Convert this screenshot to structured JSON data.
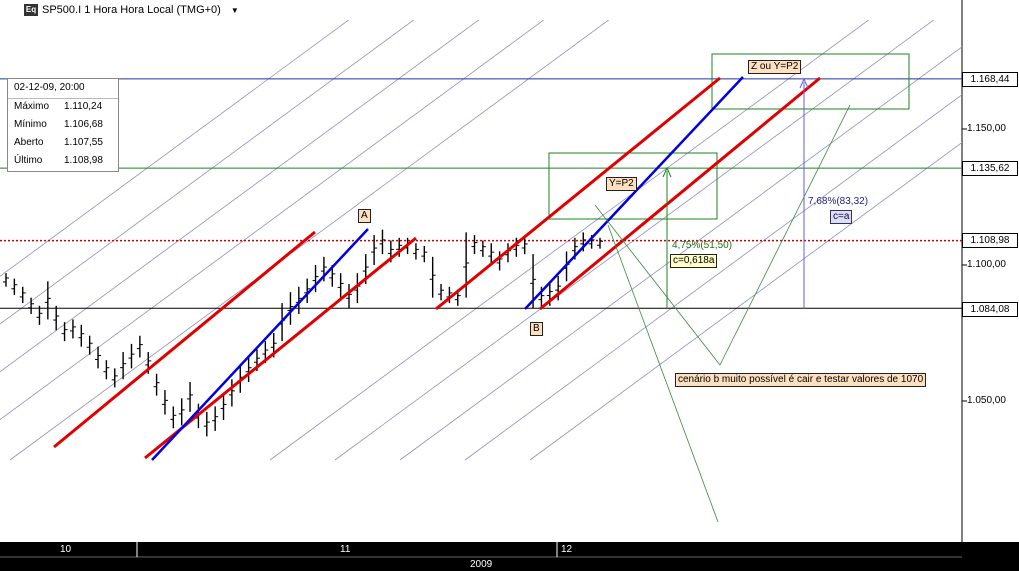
{
  "header": {
    "icon_label": "Eq",
    "title": "SP500.I 1 Hora Hora Local (TMG+0)"
  },
  "info_panel": {
    "date": "02-12-09, 20:00",
    "rows": [
      {
        "label": "Máximo",
        "value": "1.110,24"
      },
      {
        "label": "Mínimo",
        "value": "1.106,68"
      },
      {
        "label": "Aberto",
        "value": "1.107,55"
      },
      {
        "label": "Último",
        "value": "1.108,98"
      }
    ]
  },
  "y_axis_ticks": [
    "1.150,00",
    "1.100,00",
    "1.050,00"
  ],
  "price_markers": [
    {
      "label": "1.168,44",
      "color": "#cc0000"
    },
    {
      "label": "1.135,62",
      "color": "#cc0000"
    },
    {
      "label": "1.108,98",
      "color": "#000000"
    },
    {
      "label": "1.084,08",
      "color": "#cc0000"
    }
  ],
  "x_axis": {
    "day_labels": [
      "10",
      "11",
      "12"
    ],
    "year_label": "2009"
  },
  "annotations": {
    "a": "A",
    "b": "B",
    "y_p2": "Y=P2",
    "z_ou_y": "Z ou Y=P2",
    "pct1": "4,75%(51,50)",
    "c_0618": "c=0,618a",
    "pct2": "7,68%(83,32)",
    "c_a": "c=a",
    "scenario": "cenário b muito possível é cair e testar valores de 1070"
  },
  "colors": {
    "background": "#ffffff",
    "channel": "#e00000",
    "trend": "#0000e0",
    "grid_lines": "#9090c0",
    "target_box": "#208020",
    "last_price": "#cc0000"
  },
  "chart_data": {
    "type": "candlestick",
    "symbol": "SP500.I",
    "timeframe": "1 Hora",
    "ylim": [
      1025,
      1185
    ],
    "levels": {
      "z_target": 1168.44,
      "y_target": 1135.62,
      "last": 1108.98,
      "b_low": 1084.08
    },
    "bars": [
      {
        "l": 1092,
        "h": 1097
      },
      {
        "l": 1089,
        "h": 1095
      },
      {
        "l": 1086,
        "h": 1092
      },
      {
        "l": 1082,
        "h": 1088
      },
      {
        "l": 1078,
        "h": 1085
      },
      {
        "l": 1080,
        "h": 1094
      },
      {
        "l": 1076,
        "h": 1085
      },
      {
        "l": 1072,
        "h": 1079
      },
      {
        "l": 1073,
        "h": 1080
      },
      {
        "l": 1070,
        "h": 1078
      },
      {
        "l": 1067,
        "h": 1074
      },
      {
        "l": 1062,
        "h": 1070
      },
      {
        "l": 1058,
        "h": 1065
      },
      {
        "l": 1055,
        "h": 1062
      },
      {
        "l": 1058,
        "h": 1068
      },
      {
        "l": 1062,
        "h": 1071
      },
      {
        "l": 1066,
        "h": 1074
      },
      {
        "l": 1060,
        "h": 1068
      },
      {
        "l": 1052,
        "h": 1060
      },
      {
        "l": 1045,
        "h": 1054
      },
      {
        "l": 1040,
        "h": 1048
      },
      {
        "l": 1041,
        "h": 1051
      },
      {
        "l": 1046,
        "h": 1057
      },
      {
        "l": 1040,
        "h": 1049
      },
      {
        "l": 1037,
        "h": 1046
      },
      {
        "l": 1039,
        "h": 1048
      },
      {
        "l": 1043,
        "h": 1053
      },
      {
        "l": 1048,
        "h": 1058
      },
      {
        "l": 1053,
        "h": 1063
      },
      {
        "l": 1057,
        "h": 1066
      },
      {
        "l": 1061,
        "h": 1069
      },
      {
        "l": 1064,
        "h": 1072
      },
      {
        "l": 1066,
        "h": 1075
      },
      {
        "l": 1072,
        "h": 1086
      },
      {
        "l": 1078,
        "h": 1090
      },
      {
        "l": 1082,
        "h": 1092
      },
      {
        "l": 1086,
        "h": 1095
      },
      {
        "l": 1090,
        "h": 1100
      },
      {
        "l": 1094,
        "h": 1103
      },
      {
        "l": 1092,
        "h": 1100
      },
      {
        "l": 1088,
        "h": 1097
      },
      {
        "l": 1084,
        "h": 1093
      },
      {
        "l": 1086,
        "h": 1097
      },
      {
        "l": 1093,
        "h": 1104
      },
      {
        "l": 1100,
        "h": 1111
      },
      {
        "l": 1104,
        "h": 1113
      },
      {
        "l": 1101,
        "h": 1109
      },
      {
        "l": 1103,
        "h": 1110
      },
      {
        "l": 1104,
        "h": 1110
      },
      {
        "l": 1102,
        "h": 1108
      },
      {
        "l": 1101,
        "h": 1107
      },
      {
        "l": 1088,
        "h": 1103
      },
      {
        "l": 1087,
        "h": 1093
      },
      {
        "l": 1086,
        "h": 1092
      },
      {
        "l": 1085,
        "h": 1091
      },
      {
        "l": 1088,
        "h": 1112
      },
      {
        "l": 1104,
        "h": 1111
      },
      {
        "l": 1103,
        "h": 1109
      },
      {
        "l": 1100,
        "h": 1108
      },
      {
        "l": 1098,
        "h": 1105
      },
      {
        "l": 1101,
        "h": 1108
      },
      {
        "l": 1103,
        "h": 1110
      },
      {
        "l": 1104,
        "h": 1110
      },
      {
        "l": 1084,
        "h": 1104
      },
      {
        "l": 1084,
        "h": 1092
      },
      {
        "l": 1085,
        "h": 1094
      },
      {
        "l": 1087,
        "h": 1096
      },
      {
        "l": 1094,
        "h": 1105
      },
      {
        "l": 1102,
        "h": 1110
      },
      {
        "l": 1105,
        "h": 1112
      },
      {
        "l": 1106,
        "h": 1111
      },
      {
        "l": 1106,
        "h": 1110
      }
    ]
  }
}
